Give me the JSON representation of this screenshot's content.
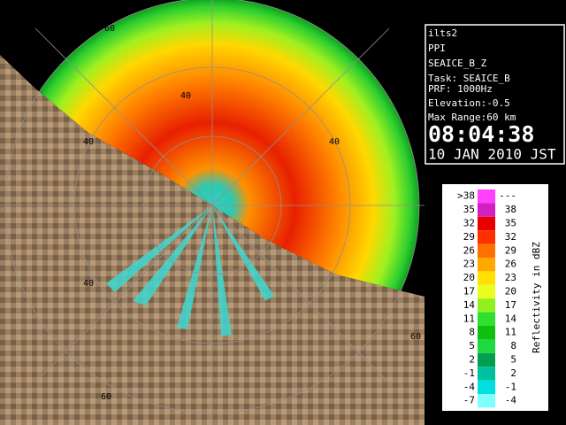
{
  "info": {
    "station": "ilts2",
    "mode": "PPI",
    "product": "SEAICE_B_Z",
    "task": "Task: SEAICE_B",
    "prf": "PRF: 1000Hz",
    "elevation": "Elevation:-0.5",
    "max_range": "Max Range:60 km",
    "time": "08:04:38",
    "date": "10 JAN 2010 JST"
  },
  "ring_labels": [
    "60",
    "40",
    "40",
    "40",
    "40",
    "60",
    "60"
  ],
  "legend": {
    "title": "Reflectivity in dBZ",
    "rows": [
      {
        "low": ">38",
        "high": "---",
        "color": "#ff40ff"
      },
      {
        "low": "35",
        "high": "38",
        "color": "#d020c0"
      },
      {
        "low": "32",
        "high": "35",
        "color": "#e80000"
      },
      {
        "low": "29",
        "high": "32",
        "color": "#ff3000"
      },
      {
        "low": "26",
        "high": "29",
        "color": "#ff7000"
      },
      {
        "low": "23",
        "high": "26",
        "color": "#ffa800"
      },
      {
        "low": "20",
        "high": "23",
        "color": "#ffe000"
      },
      {
        "low": "17",
        "high": "20",
        "color": "#e8ff20"
      },
      {
        "low": "14",
        "high": "17",
        "color": "#90f020"
      },
      {
        "low": "11",
        "high": "14",
        "color": "#30e030"
      },
      {
        "low": "8",
        "high": "11",
        "color": "#10c010"
      },
      {
        "low": "5",
        "high": "8",
        "color": "#20d840"
      },
      {
        "low": "2",
        "high": "5",
        "color": "#00a050"
      },
      {
        "low": "-1",
        "high": "2",
        "color": "#00c0a0"
      },
      {
        "low": "-4",
        "high": "-1",
        "color": "#00e0e0"
      },
      {
        "low": "-7",
        "high": "-4",
        "color": "#80ffff"
      }
    ]
  }
}
